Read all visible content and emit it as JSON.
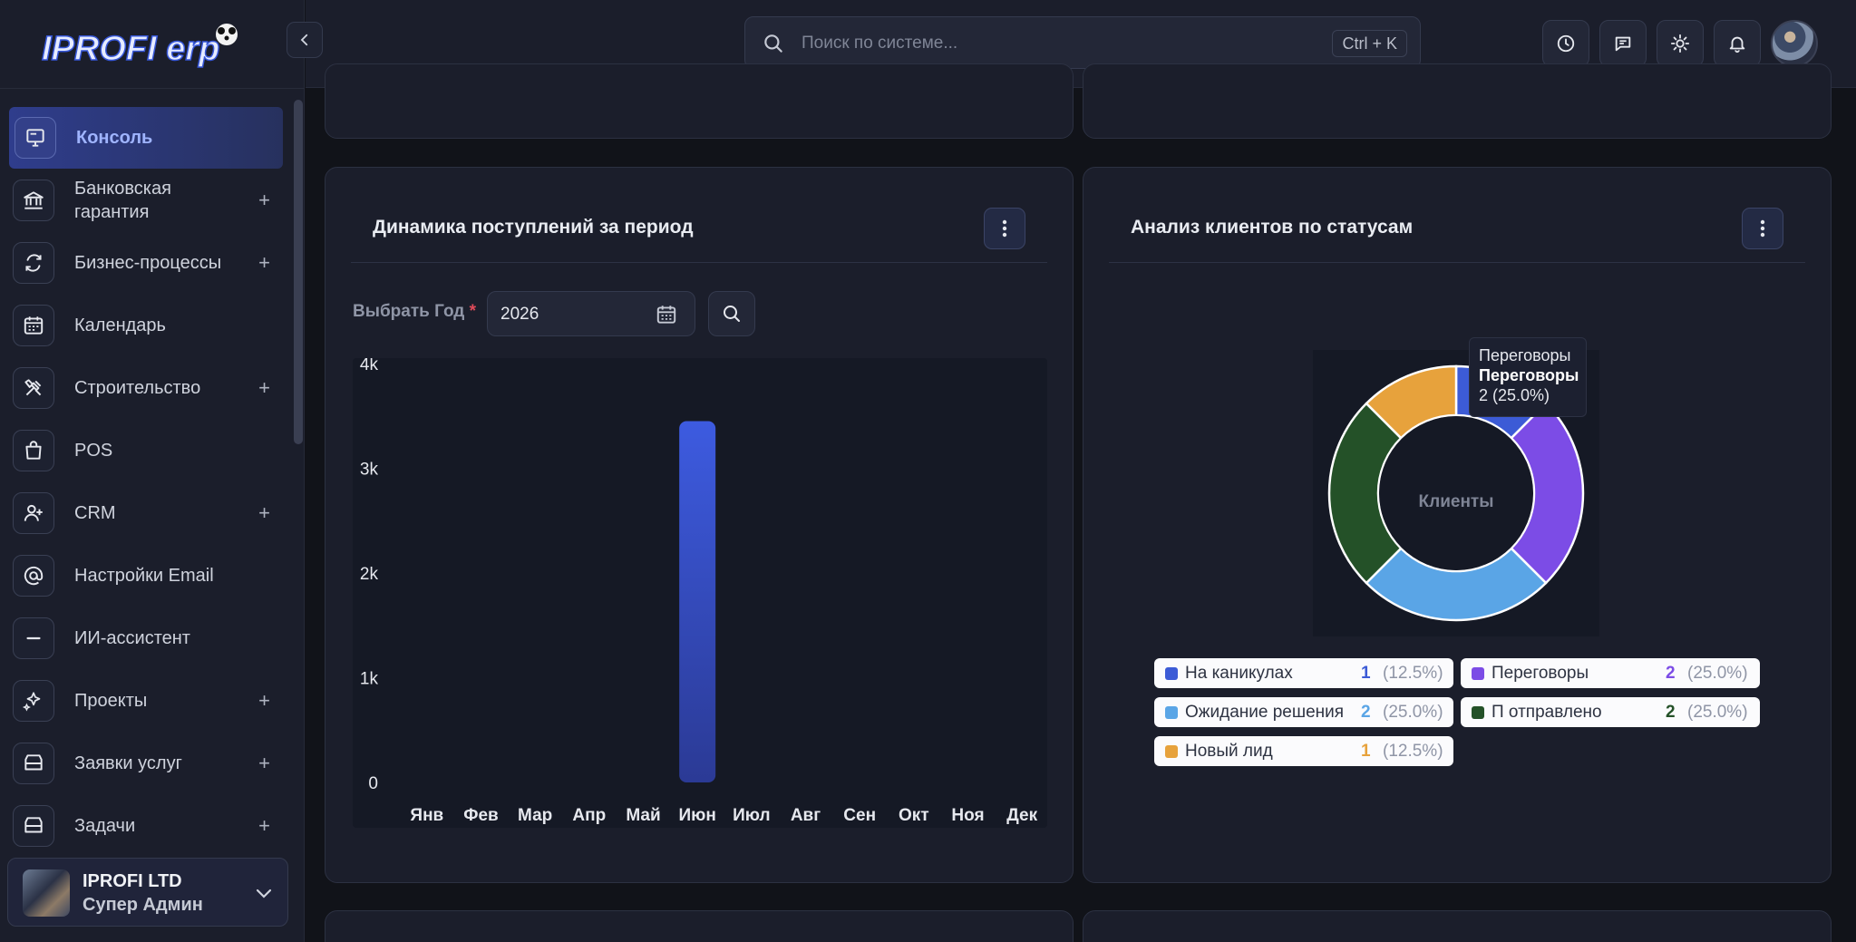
{
  "sidebar": {
    "logo_text": "IPROFI erp",
    "items": [
      {
        "label": "Консоль",
        "icon": "monitor-icon",
        "expandable": false,
        "active": true
      },
      {
        "label": "Банковская гарантия",
        "icon": "bank-icon",
        "expandable": true
      },
      {
        "label": "Бизнес-процессы",
        "icon": "refresh-icon",
        "expandable": true
      },
      {
        "label": "Календарь",
        "icon": "calendar-icon",
        "expandable": false
      },
      {
        "label": "Строительство",
        "icon": "tools-icon",
        "expandable": true
      },
      {
        "label": "POS",
        "icon": "shopping-bag-icon",
        "expandable": false
      },
      {
        "label": "CRM",
        "icon": "user-plus-icon",
        "expandable": true
      },
      {
        "label": "Настройки Email",
        "icon": "at-sign-icon",
        "expandable": false
      },
      {
        "label": "ИИ-ассистент",
        "icon": "minus-icon",
        "expandable": false
      },
      {
        "label": "Проекты",
        "icon": "sparkles-icon",
        "expandable": true
      },
      {
        "label": "Заявки услуг",
        "icon": "inbox-icon",
        "expandable": true
      },
      {
        "label": "Задачи",
        "icon": "inbox-icon",
        "expandable": true
      }
    ],
    "plus": "+",
    "company": {
      "name": "IPROFI LTD",
      "role": "Супер Админ"
    }
  },
  "topbar": {
    "search_placeholder": "Поиск по системе...",
    "shortcut": "Ctrl + K",
    "buttons": [
      "clock-icon",
      "message-icon",
      "sun-icon",
      "bell-icon"
    ]
  },
  "income_card": {
    "title": "Динамика поступлений за период",
    "year_label": "Выбрать Год",
    "required_mark": "*",
    "year_value": "2026"
  },
  "clients_card": {
    "title": "Анализ клиентов по статусам",
    "center_label": "Клиенты",
    "tooltip": {
      "line1": "Переговоры",
      "line2": "Переговоры",
      "line3": "2 (25.0%)"
    },
    "legend": [
      {
        "name": "На каникулах",
        "count": "1",
        "pct": "(12.5%)",
        "color": "#3c5bd6"
      },
      {
        "name": "Переговоры",
        "count": "2",
        "pct": "(25.0%)",
        "color": "#7c4ce6"
      },
      {
        "name": "Ожидание решения",
        "count": "2",
        "pct": "(25.0%)",
        "color": "#5aa5e6"
      },
      {
        "name": "П отправлено",
        "count": "2",
        "pct": "(25.0%)",
        "color": "#245128"
      },
      {
        "name": "Новый лид",
        "count": "1",
        "pct": "(12.5%)",
        "color": "#e7a23c"
      }
    ]
  },
  "chart_data": [
    {
      "type": "bar",
      "categories": [
        "Янв",
        "Фев",
        "Мар",
        "Апр",
        "Май",
        "Июн",
        "Июл",
        "Авг",
        "Сен",
        "Окт",
        "Ноя",
        "Дек"
      ],
      "values": [
        0,
        0,
        0,
        0,
        0,
        3450,
        0,
        0,
        0,
        0,
        0,
        0
      ],
      "yticks": [
        "0",
        "1k",
        "2k",
        "3k",
        "4k"
      ],
      "ylim": [
        0,
        4000
      ],
      "title": "",
      "xlabel": "",
      "ylabel": ""
    },
    {
      "type": "pie",
      "donut": true,
      "labels": [
        "На каникулах",
        "Переговоры",
        "Ожидание решения",
        "П отправлено",
        "Новый лид"
      ],
      "values": [
        1,
        2,
        2,
        2,
        1
      ],
      "colors": [
        "#3c5bd6",
        "#7c4ce6",
        "#5aa5e6",
        "#245128",
        "#e7a23c"
      ]
    }
  ]
}
